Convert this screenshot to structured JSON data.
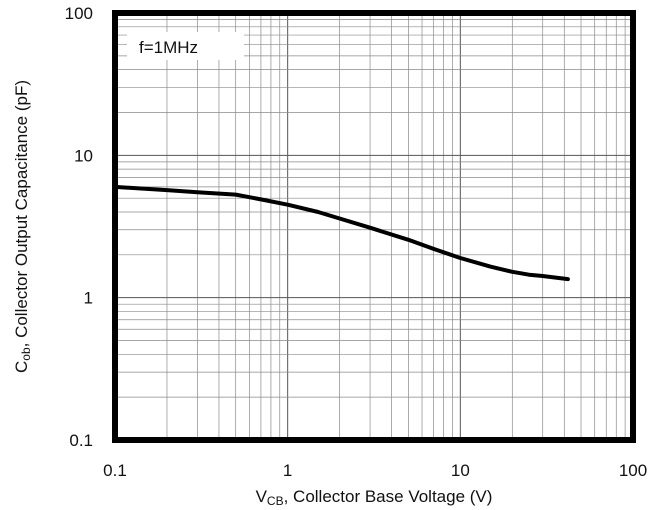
{
  "chart_data": {
    "type": "line",
    "title": "",
    "xlabel": "V_CB, Collector Base Voltage (V)",
    "xlabel_main": "V",
    "xlabel_sub": "CB",
    "xlabel_rest": ", Collector Base Voltage (V)",
    "ylabel": "C_ob, Collector Output Capacitance (pF)",
    "ylabel_main": "C",
    "ylabel_sub": "ob",
    "ylabel_rest": ", Collector Output Capacitance (pF)",
    "xscale": "log",
    "yscale": "log",
    "xlim": [
      0.1,
      100
    ],
    "ylim": [
      0.1,
      100
    ],
    "xticks": [
      "0.1",
      "1",
      "10",
      "100"
    ],
    "yticks": [
      "0.1",
      "1",
      "10",
      "100"
    ],
    "grid": true,
    "annotation": "f=1MHz",
    "series": [
      {
        "x": [
          0.1,
          0.2,
          0.3,
          0.5,
          0.7,
          1.0,
          1.5,
          2.0,
          3.0,
          5.0,
          7.0,
          10.0,
          15.0,
          20.0,
          25.0,
          30.0,
          42.0
        ],
        "values": [
          6.0,
          5.7,
          5.5,
          5.3,
          4.9,
          4.5,
          4.0,
          3.6,
          3.1,
          2.55,
          2.2,
          1.9,
          1.65,
          1.52,
          1.45,
          1.42,
          1.35
        ]
      }
    ],
    "line_color": "#000000"
  }
}
